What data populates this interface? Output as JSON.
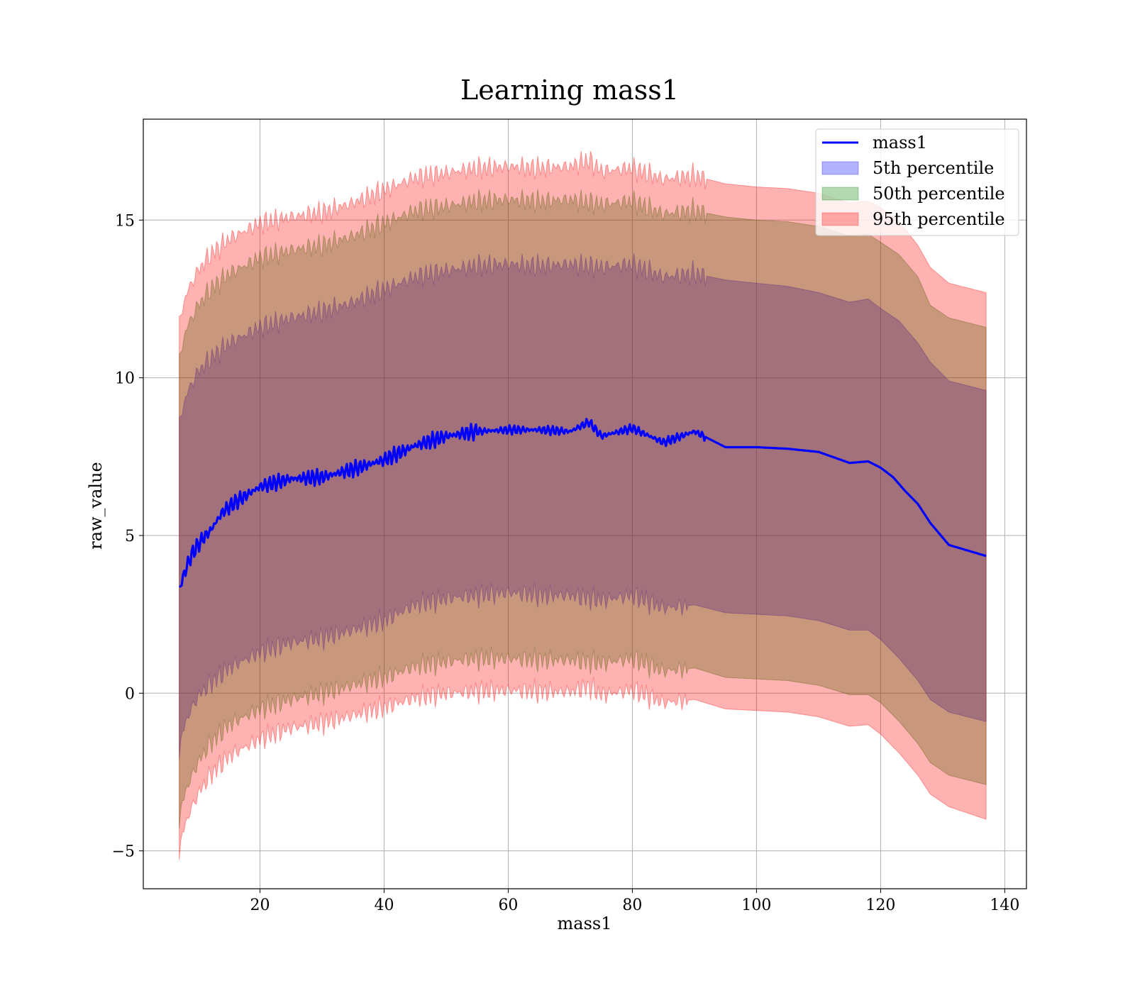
{
  "chart_data": {
    "type": "area",
    "title": "Learning mass1",
    "xlabel": "mass1",
    "ylabel": "raw_value",
    "xlim": [
      1.2,
      143.5
    ],
    "ylim": [
      -6.2,
      18.2
    ],
    "xticks": [
      20,
      40,
      60,
      80,
      100,
      120,
      140
    ],
    "yticks": [
      -5,
      0,
      5,
      10,
      15
    ],
    "ytick_labels": [
      "−5",
      "0",
      "5",
      "10",
      "15"
    ],
    "grid": true,
    "legend_position": "top-right",
    "line": {
      "name": "mass1",
      "color": "#0000ff",
      "x": [
        7,
        8,
        9,
        10,
        11,
        12,
        13,
        14,
        16,
        18,
        20,
        22,
        25,
        30,
        35,
        40,
        45,
        50,
        55,
        60,
        65,
        70,
        73,
        75,
        80,
        85,
        90,
        95,
        100,
        105,
        110,
        115,
        118,
        120,
        122,
        124,
        126,
        128,
        131,
        137
      ],
      "y": [
        3.3,
        3.9,
        4.4,
        4.7,
        4.95,
        5.15,
        5.45,
        5.75,
        6.05,
        6.3,
        6.55,
        6.65,
        6.8,
        6.85,
        7.1,
        7.4,
        7.85,
        8.15,
        8.3,
        8.35,
        8.35,
        8.3,
        8.6,
        8.15,
        8.4,
        7.95,
        8.3,
        7.8,
        7.8,
        7.75,
        7.65,
        7.3,
        7.35,
        7.15,
        6.85,
        6.4,
        6.0,
        5.4,
        4.7,
        4.35
      ]
    },
    "bands": [
      {
        "name": "5th percentile",
        "color": "#0000ff",
        "opacity": 0.3,
        "x": [
          7,
          8,
          10,
          12,
          15,
          20,
          25,
          30,
          35,
          40,
          45,
          50,
          55,
          60,
          65,
          70,
          75,
          80,
          85,
          90,
          95,
          100,
          105,
          110,
          115,
          118,
          120,
          123,
          126,
          128,
          131,
          137
        ],
        "upper": [
          8.5,
          9.4,
          10.2,
          10.6,
          11.1,
          11.6,
          11.9,
          12.1,
          12.4,
          12.8,
          13.2,
          13.4,
          13.55,
          13.6,
          13.55,
          13.6,
          13.5,
          13.6,
          13.2,
          13.3,
          13.1,
          13.0,
          12.9,
          12.7,
          12.4,
          12.5,
          12.2,
          11.8,
          11.1,
          10.5,
          9.9,
          9.6
        ],
        "lower": [
          -1.8,
          -0.9,
          -0.1,
          0.3,
          0.8,
          1.3,
          1.6,
          1.75,
          2.0,
          2.3,
          2.8,
          3.0,
          3.1,
          3.2,
          3.1,
          3.1,
          2.95,
          3.1,
          2.7,
          2.8,
          2.55,
          2.5,
          2.45,
          2.3,
          2.0,
          2.0,
          1.7,
          1.1,
          0.4,
          -0.2,
          -0.6,
          -0.9
        ]
      },
      {
        "name": "50th percentile",
        "color": "#008000",
        "opacity": 0.3,
        "x": [
          7,
          8,
          10,
          12,
          15,
          20,
          25,
          30,
          35,
          40,
          45,
          50,
          55,
          60,
          65,
          70,
          75,
          80,
          85,
          90,
          95,
          100,
          105,
          110,
          115,
          118,
          120,
          123,
          126,
          128,
          131,
          137
        ],
        "upper": [
          10.5,
          11.5,
          12.3,
          12.8,
          13.3,
          13.8,
          14.05,
          14.2,
          14.5,
          14.9,
          15.3,
          15.45,
          15.6,
          15.65,
          15.6,
          15.65,
          15.5,
          15.6,
          15.2,
          15.3,
          15.1,
          15.0,
          14.95,
          14.8,
          14.5,
          14.55,
          14.3,
          13.9,
          13.2,
          12.3,
          11.9,
          11.6
        ],
        "lower": [
          -4.0,
          -3.1,
          -2.2,
          -1.6,
          -1.0,
          -0.5,
          -0.2,
          0.0,
          0.25,
          0.5,
          0.85,
          1.0,
          1.1,
          1.1,
          1.05,
          1.05,
          0.95,
          1.1,
          0.7,
          0.8,
          0.5,
          0.45,
          0.4,
          0.25,
          -0.05,
          -0.05,
          -0.3,
          -0.9,
          -1.6,
          -2.2,
          -2.6,
          -2.9
        ]
      },
      {
        "name": "95th percentile",
        "color": "#ff0000",
        "opacity": 0.3,
        "x": [
          7,
          8,
          10,
          12,
          15,
          20,
          25,
          30,
          35,
          40,
          45,
          50,
          55,
          60,
          65,
          70,
          73,
          75,
          80,
          85,
          90,
          95,
          100,
          105,
          110,
          115,
          118,
          120,
          123,
          126,
          128,
          131,
          137
        ],
        "upper": [
          11.7,
          12.6,
          13.4,
          13.9,
          14.4,
          14.9,
          15.1,
          15.25,
          15.55,
          15.95,
          16.35,
          16.5,
          16.65,
          16.7,
          16.65,
          16.7,
          16.9,
          16.55,
          16.65,
          16.3,
          16.4,
          16.15,
          16.05,
          16.0,
          15.85,
          15.55,
          15.6,
          15.4,
          14.95,
          14.2,
          13.5,
          13.0,
          12.7
        ],
        "lower": [
          -5.0,
          -4.1,
          -3.2,
          -2.6,
          -2.0,
          -1.45,
          -1.1,
          -0.95,
          -0.7,
          -0.45,
          -0.15,
          0.0,
          0.05,
          0.1,
          0.05,
          0.05,
          0.2,
          -0.05,
          0.1,
          -0.3,
          -0.2,
          -0.5,
          -0.55,
          -0.6,
          -0.75,
          -1.05,
          -1.0,
          -1.3,
          -1.9,
          -2.6,
          -3.2,
          -3.6,
          -4.0
        ]
      }
    ]
  }
}
